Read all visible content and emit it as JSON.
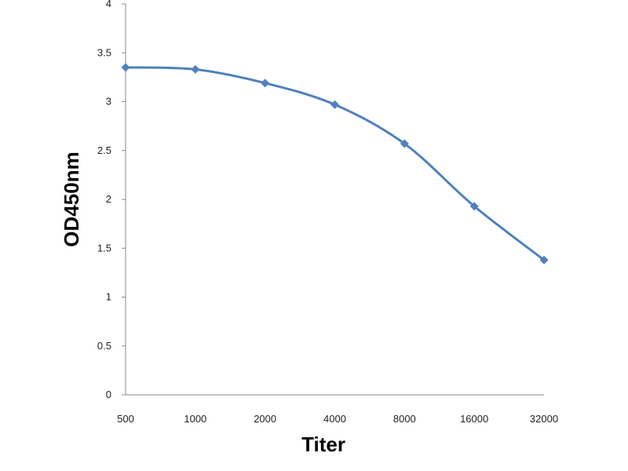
{
  "chart_data": {
    "type": "line",
    "xlabel": "Titer",
    "ylabel": "OD450nm",
    "categories": [
      "500",
      "1000",
      "2000",
      "4000",
      "8000",
      "16000",
      "32000"
    ],
    "series": [
      {
        "values": [
          3.35,
          3.33,
          3.19,
          2.97,
          2.57,
          1.93,
          1.38
        ]
      }
    ],
    "ylim": [
      0,
      4
    ],
    "yticks": [
      "0",
      "0.5",
      "1",
      "1.5",
      "2",
      "2.5",
      "3",
      "3.5",
      "4"
    ],
    "grid": false,
    "marker": "diamond",
    "color": "#4f81bd",
    "smooth": true
  }
}
